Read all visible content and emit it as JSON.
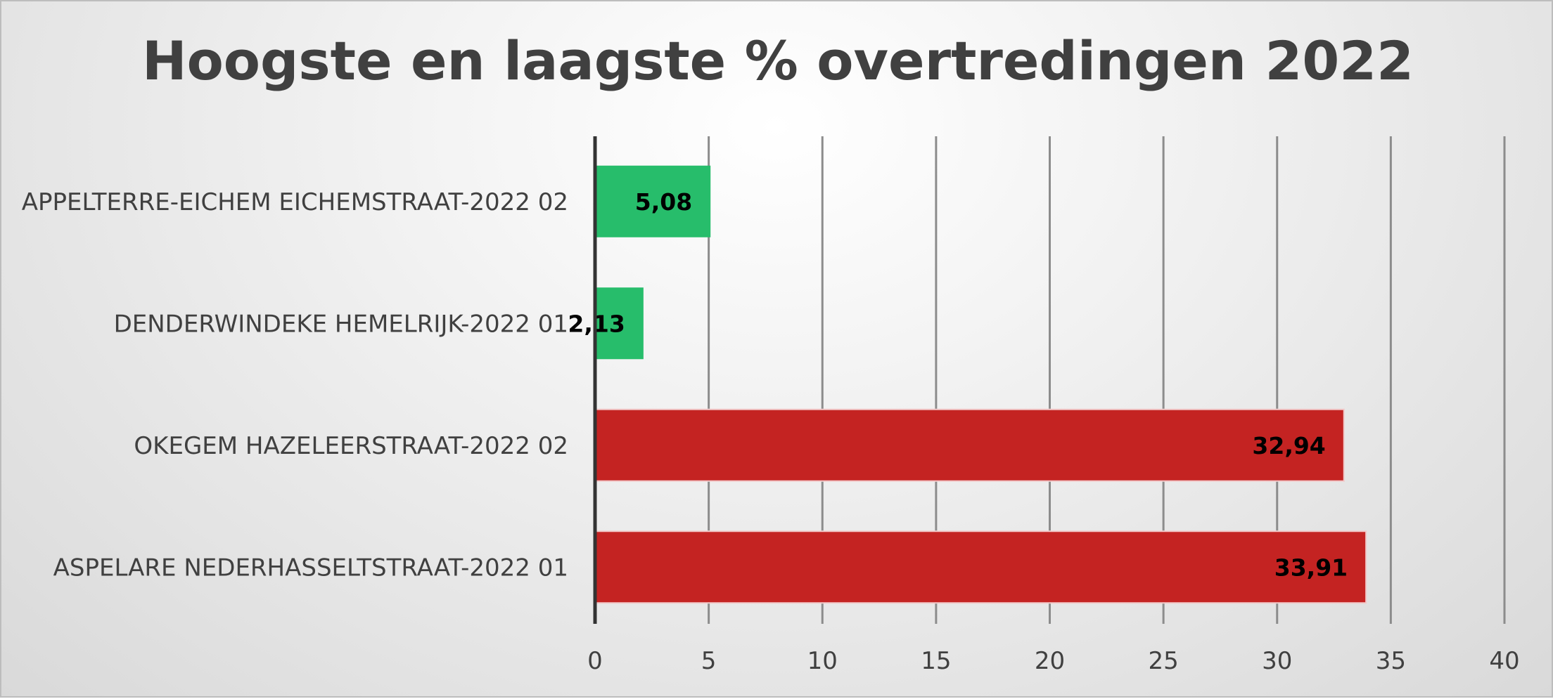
{
  "chart_data": {
    "type": "bar",
    "orientation": "horizontal",
    "title": "Hoogste en laagste % overtredingen 2022",
    "xlabel": "",
    "ylabel": "",
    "xlim": [
      0,
      40
    ],
    "x_ticks": [
      "0",
      "5",
      "10",
      "15",
      "20",
      "25",
      "30",
      "35",
      "40"
    ],
    "grid": "vertical",
    "legend": "none",
    "categories": [
      "APPELTERRE-EICHEM EICHEMSTRAAT-2022 02",
      "DENDERWINDEKE  HEMELRIJK-2022 01",
      "OKEGEM HAZELEERSTRAAT-2022 02",
      "ASPELARE NEDERHASSELTSTRAAT-2022 01"
    ],
    "values": [
      5.08,
      2.13,
      32.94,
      33.91
    ],
    "value_labels": [
      "5,08",
      "2,13",
      "32,94",
      "33,91"
    ],
    "colors": [
      "#27bd6b",
      "#27bd6b",
      "#c42322",
      "#c42322"
    ]
  }
}
